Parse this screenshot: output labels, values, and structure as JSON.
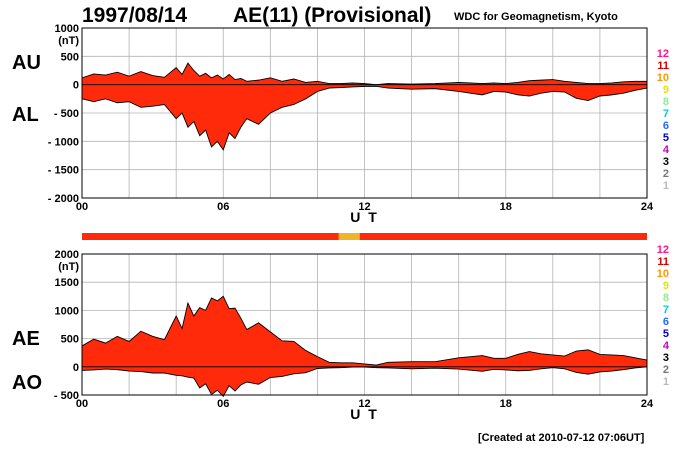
{
  "header": {
    "date": "1997/08/14",
    "title": "AE(11) (Provisional)",
    "source": "WDC for Geomagnetism, Kyoto"
  },
  "footer": {
    "created": "[Created at 2010-07-12 07:06UT]"
  },
  "panel_labels": {
    "au": "AU",
    "al": "AL",
    "ae": "AE",
    "ao": "AO"
  },
  "colors": {
    "fill_main": "#ff2a0a",
    "fill_sparse": "#f0b428",
    "grid": "#b4b4b4",
    "axis": "#000000"
  },
  "station_scale": {
    "labels": [
      "12",
      "11",
      "10",
      "9",
      "8",
      "7",
      "6",
      "5",
      "4",
      "3",
      "2",
      "1"
    ],
    "colors": [
      "#ff1493",
      "#d40000",
      "#ff9900",
      "#e6e600",
      "#90ee90",
      "#00ced1",
      "#1e6fff",
      "#0000cd",
      "#cc00cc",
      "#000000",
      "#777777",
      "#bbbbbb"
    ]
  },
  "chart_data": [
    {
      "type": "area",
      "panel": "AU/AL",
      "xlabel": "U T",
      "ylabel": "(nT)",
      "xlim": [
        0,
        24
      ],
      "xticks": [
        "00",
        "06",
        "12",
        "18",
        "24"
      ],
      "ylim": [
        -2000,
        1000
      ],
      "yticks": [
        "1000",
        "500",
        "0",
        "- 500",
        "- 1000",
        "- 1500",
        "- 2000"
      ],
      "x": [
        0,
        0.5,
        1,
        1.5,
        2,
        2.5,
        3,
        3.5,
        4,
        4.25,
        4.5,
        4.75,
        5,
        5.25,
        5.5,
        5.75,
        6,
        6.25,
        6.5,
        6.75,
        7,
        7.5,
        8,
        8.5,
        9,
        9.5,
        10,
        10.5,
        11,
        11.5,
        12,
        12.5,
        13,
        14,
        15,
        16,
        16.5,
        17,
        17.5,
        18,
        18.5,
        19,
        19.5,
        20,
        20.5,
        21,
        21.5,
        22,
        22.5,
        23,
        23.5,
        24
      ],
      "series": [
        {
          "name": "AU",
          "values": [
            120,
            190,
            170,
            220,
            150,
            230,
            160,
            130,
            300,
            180,
            380,
            250,
            150,
            200,
            120,
            170,
            100,
            180,
            90,
            110,
            60,
            80,
            120,
            60,
            100,
            40,
            60,
            20,
            20,
            30,
            20,
            0,
            20,
            10,
            20,
            40,
            30,
            20,
            30,
            20,
            40,
            70,
            80,
            90,
            60,
            40,
            20,
            20,
            30,
            50,
            60,
            60
          ]
        },
        {
          "name": "AL",
          "values": [
            -250,
            -300,
            -250,
            -320,
            -300,
            -400,
            -380,
            -350,
            -600,
            -500,
            -750,
            -650,
            -900,
            -800,
            -1100,
            -1000,
            -1150,
            -850,
            -950,
            -750,
            -600,
            -700,
            -500,
            -400,
            -350,
            -250,
            -120,
            -60,
            -50,
            -40,
            -30,
            -30,
            -60,
            -80,
            -70,
            -120,
            -150,
            -180,
            -120,
            -130,
            -180,
            -200,
            -150,
            -120,
            -130,
            -240,
            -280,
            -200,
            -180,
            -150,
            -100,
            -60
          ]
        }
      ]
    },
    {
      "type": "area",
      "panel": "AE/AO",
      "xlabel": "U T",
      "ylabel": "(nT)",
      "xlim": [
        0,
        24
      ],
      "xticks": [
        "00",
        "06",
        "12",
        "18",
        "24"
      ],
      "ylim": [
        -500,
        2000
      ],
      "yticks": [
        "2000",
        "1500",
        "1000",
        "500",
        "0",
        "- 500"
      ],
      "x": [
        0,
        0.5,
        1,
        1.5,
        2,
        2.5,
        3,
        3.5,
        4,
        4.25,
        4.5,
        4.75,
        5,
        5.25,
        5.5,
        5.75,
        6,
        6.25,
        6.5,
        6.75,
        7,
        7.5,
        8,
        8.5,
        9,
        9.5,
        10,
        10.5,
        11,
        11.5,
        12,
        12.5,
        13,
        14,
        15,
        16,
        16.5,
        17,
        17.5,
        18,
        18.5,
        19,
        19.5,
        20,
        20.5,
        21,
        21.5,
        22,
        22.5,
        23,
        23.5,
        24
      ],
      "series": [
        {
          "name": "AE",
          "values": [
            370,
            490,
            420,
            540,
            450,
            630,
            540,
            480,
            900,
            680,
            1130,
            900,
            1050,
            1000,
            1220,
            1170,
            1250,
            1030,
            1040,
            860,
            660,
            780,
            620,
            460,
            450,
            290,
            180,
            80,
            70,
            70,
            50,
            30,
            80,
            90,
            90,
            160,
            180,
            200,
            150,
            150,
            220,
            270,
            230,
            210,
            190,
            280,
            300,
            220,
            210,
            200,
            160,
            120
          ]
        },
        {
          "name": "AO",
          "values": [
            -65,
            -55,
            -40,
            -50,
            -75,
            -85,
            -110,
            -110,
            -150,
            -160,
            -185,
            -200,
            -375,
            -300,
            -490,
            -415,
            -525,
            -335,
            -430,
            -320,
            -270,
            -310,
            -190,
            -170,
            -125,
            -105,
            -30,
            -20,
            -15,
            -5,
            -5,
            -15,
            -20,
            -35,
            -25,
            -40,
            -60,
            -80,
            -45,
            -55,
            -70,
            -65,
            -35,
            -15,
            -35,
            -100,
            -130,
            -90,
            -75,
            -50,
            -20,
            0
          ]
        }
      ]
    }
  ]
}
